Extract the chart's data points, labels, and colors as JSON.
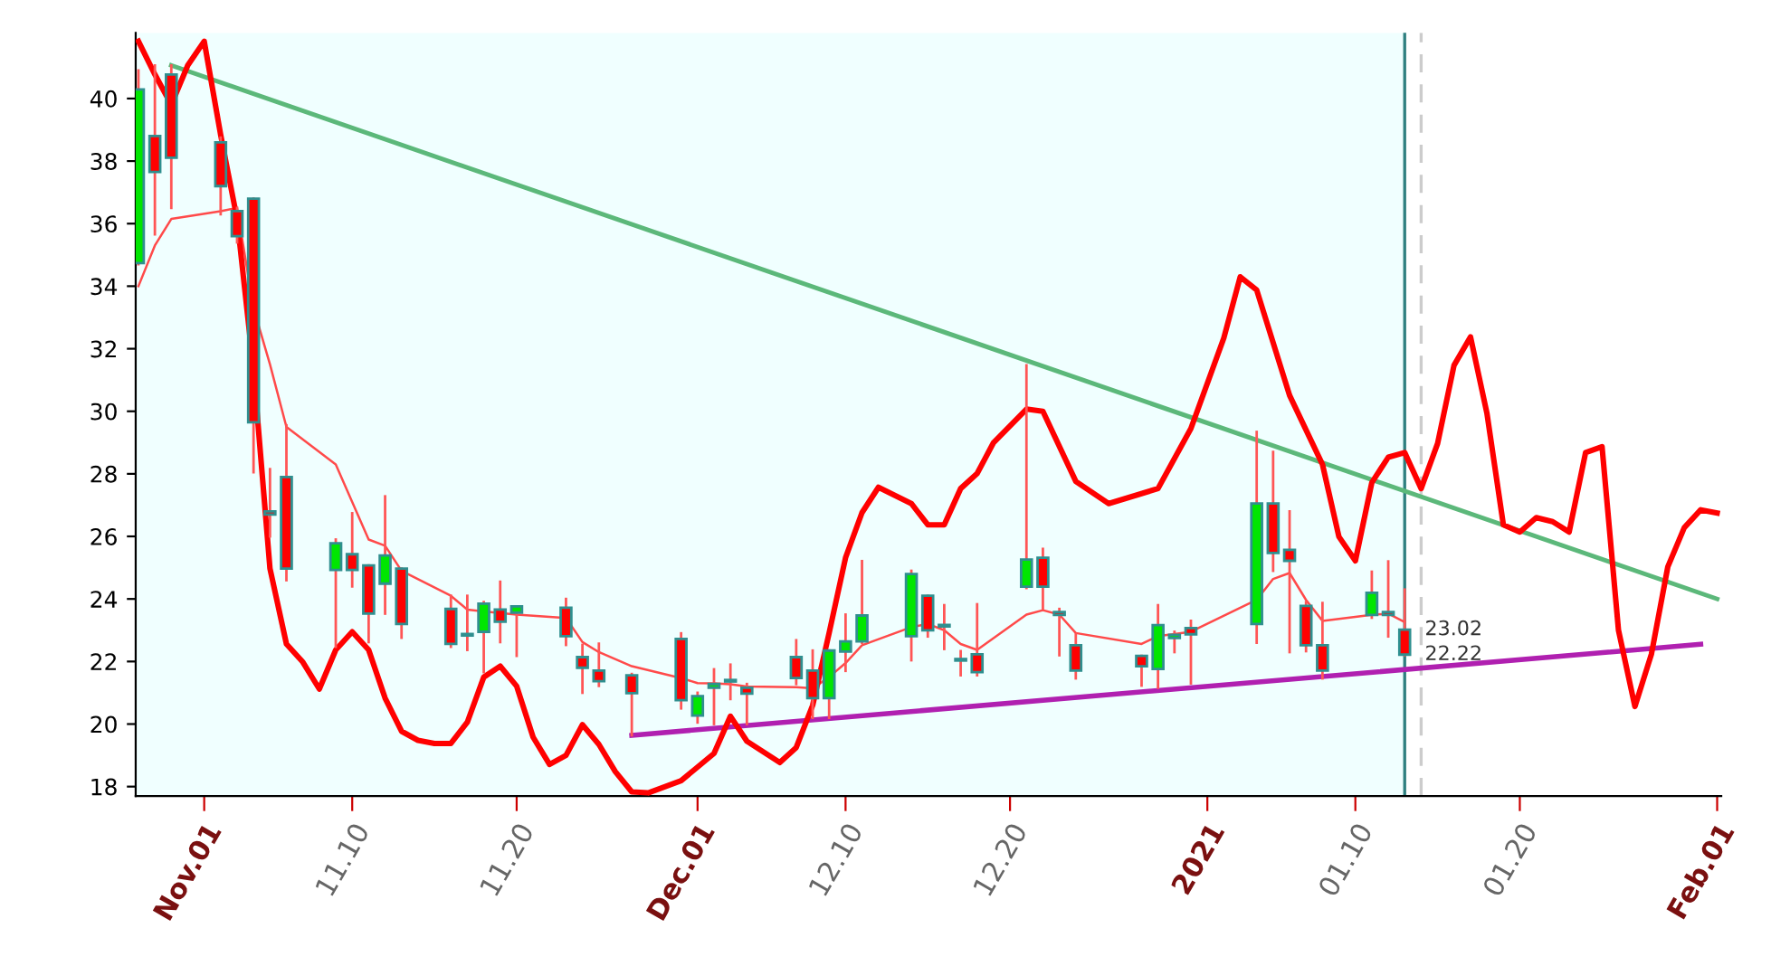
{
  "chart_data": {
    "type": "candlestick",
    "x": [
      "2020-10-28",
      "2020-10-29",
      "2020-10-30",
      "2020-11-02",
      "2020-11-03",
      "2020-11-04",
      "2020-11-05",
      "2020-11-06",
      "2020-11-09",
      "2020-11-10",
      "2020-11-11",
      "2020-11-12",
      "2020-11-13",
      "2020-11-16",
      "2020-11-17",
      "2020-11-18",
      "2020-11-19",
      "2020-11-20",
      "2020-11-23",
      "2020-11-24",
      "2020-11-25",
      "2020-11-27",
      "2020-11-30",
      "2020-12-01",
      "2020-12-02",
      "2020-12-03",
      "2020-12-04",
      "2020-12-07",
      "2020-12-08",
      "2020-12-09",
      "2020-12-10",
      "2020-12-11",
      "2020-12-14",
      "2020-12-15",
      "2020-12-16",
      "2020-12-17",
      "2020-12-18",
      "2020-12-21",
      "2020-12-22",
      "2020-12-23",
      "2020-12-24",
      "2020-12-28",
      "2020-12-29",
      "2020-12-30",
      "2020-12-31",
      "2021-01-04",
      "2021-01-05",
      "2021-01-06",
      "2021-01-07",
      "2021-01-08",
      "2021-01-11",
      "2021-01-12",
      "2021-01-13"
    ],
    "ohlc": [
      [
        34.74,
        40.9,
        34.7,
        40.29
      ],
      [
        38.8,
        41.06,
        35.66,
        37.65
      ],
      [
        40.77,
        41.06,
        36.5,
        38.11
      ],
      [
        38.6,
        38.75,
        36.3,
        37.2
      ],
      [
        36.4,
        36.5,
        35.4,
        35.6
      ],
      [
        36.8,
        36.8,
        28.05,
        29.65
      ],
      [
        26.8,
        28.15,
        26.0,
        26.7
      ],
      [
        27.9,
        29.55,
        24.6,
        24.97
      ],
      [
        24.93,
        25.9,
        22.47,
        25.78
      ],
      [
        25.43,
        26.74,
        24.4,
        24.93
      ],
      [
        25.07,
        25.07,
        22.62,
        23.53
      ],
      [
        24.49,
        27.28,
        23.53,
        25.39
      ],
      [
        24.97,
        24.97,
        22.76,
        23.2
      ],
      [
        23.68,
        24.1,
        22.47,
        22.56
      ],
      [
        22.87,
        24.1,
        22.37,
        22.83
      ],
      [
        22.95,
        23.9,
        21.66,
        23.85
      ],
      [
        23.66,
        24.55,
        22.62,
        23.27
      ],
      [
        23.56,
        23.76,
        22.18,
        23.76
      ],
      [
        23.72,
        24.0,
        22.53,
        22.81
      ],
      [
        22.14,
        22.53,
        21.0,
        21.8
      ],
      [
        21.71,
        22.57,
        21.22,
        21.37
      ],
      [
        21.56,
        21.6,
        19.64,
        20.99
      ],
      [
        22.72,
        22.9,
        20.5,
        20.76
      ],
      [
        20.27,
        21.0,
        20.05,
        20.89
      ],
      [
        21.16,
        21.75,
        20.0,
        21.28
      ],
      [
        21.38,
        21.9,
        20.8,
        21.36
      ],
      [
        21.16,
        21.28,
        20.0,
        20.97
      ],
      [
        22.14,
        22.68,
        21.28,
        21.47
      ],
      [
        21.71,
        22.35,
        20.2,
        20.83
      ],
      [
        20.83,
        22.35,
        20.2,
        22.35
      ],
      [
        22.32,
        23.5,
        21.7,
        22.64
      ],
      [
        22.64,
        25.21,
        22.6,
        23.47
      ],
      [
        22.81,
        24.9,
        22.04,
        24.8
      ],
      [
        24.1,
        24.1,
        22.8,
        23.0
      ],
      [
        23.14,
        23.8,
        22.4,
        23.12
      ],
      [
        22.05,
        22.33,
        21.56,
        22.03
      ],
      [
        22.23,
        23.83,
        21.56,
        21.66
      ],
      [
        24.39,
        31.47,
        24.35,
        25.26
      ],
      [
        25.32,
        25.6,
        23.68,
        24.39
      ],
      [
        23.58,
        23.68,
        22.2,
        23.49
      ],
      [
        22.52,
        22.86,
        21.46,
        21.71
      ],
      [
        22.18,
        22.18,
        21.23,
        21.85
      ],
      [
        21.76,
        23.8,
        21.16,
        23.16
      ],
      [
        22.75,
        22.95,
        22.3,
        22.85
      ],
      [
        23.07,
        23.3,
        21.3,
        22.87
      ],
      [
        23.2,
        29.34,
        22.6,
        27.05
      ],
      [
        27.05,
        28.7,
        24.9,
        25.47
      ],
      [
        25.57,
        26.8,
        22.3,
        25.22
      ],
      [
        23.78,
        23.9,
        22.33,
        22.52
      ],
      [
        22.52,
        23.87,
        21.46,
        21.71
      ],
      [
        23.49,
        24.87,
        23.4,
        24.2
      ],
      [
        23.58,
        25.2,
        22.8,
        23.49
      ],
      [
        23.02,
        24.3,
        22.2,
        22.22
      ]
    ],
    "colors": [
      "#00e600",
      "#ff0000",
      "#ff0000",
      "#ff0000",
      "#ff0000",
      "#ff0000",
      "#ff0000",
      "#ff0000",
      "#00e600",
      "#ff0000",
      "#ff0000",
      "#00e600",
      "#ff0000",
      "#ff0000",
      "#ff0000",
      "#00e600",
      "#ff0000",
      "#00e600",
      "#ff0000",
      "#ff0000",
      "#ff0000",
      "#ff0000",
      "#ff0000",
      "#00e600",
      "#00e600",
      "#ff0000",
      "#ff0000",
      "#ff0000",
      "#ff0000",
      "#00e600",
      "#00e600",
      "#00e600",
      "#00e600",
      "#ff0000",
      "#ff0000",
      "#ff0000",
      "#ff0000",
      "#00e600",
      "#ff0000",
      "#ff0000",
      "#ff0000",
      "#ff0000",
      "#00e600",
      "#00e600",
      "#ff0000",
      "#00e600",
      "#ff0000",
      "#ff0000",
      "#ff0000",
      "#ff0000",
      "#00e600",
      "#ff0000",
      "#ff0000"
    ],
    "series": [
      {
        "type": "line",
        "color": "#ff4a4a",
        "x": [
          "2020-10-28",
          "2020-10-29",
          "2020-10-30",
          "2020-11-02",
          "2020-11-03",
          "2020-11-04",
          "2020-11-05",
          "2020-11-06",
          "2020-11-09",
          "2020-11-10",
          "2020-11-11",
          "2020-11-12",
          "2020-11-13",
          "2020-11-16",
          "2020-11-17",
          "2020-11-18",
          "2020-11-19",
          "2020-11-20",
          "2020-11-23",
          "2020-11-24",
          "2020-11-25",
          "2020-11-27",
          "2020-11-30",
          "2020-12-01",
          "2020-12-02",
          "2020-12-03",
          "2020-12-04",
          "2020-12-07",
          "2020-12-08",
          "2020-12-09",
          "2020-12-10",
          "2020-12-11",
          "2020-12-14",
          "2020-12-15",
          "2020-12-16",
          "2020-12-17",
          "2020-12-18",
          "2020-12-21",
          "2020-12-22",
          "2020-12-23",
          "2020-12-24",
          "2020-12-28",
          "2020-12-29",
          "2020-12-30",
          "2020-12-31",
          "2021-01-04",
          "2021-01-05",
          "2021-01-06",
          "2021-01-07",
          "2021-01-08",
          "2021-01-11",
          "2021-01-12",
          "2021-01-13"
        ],
        "values": [
          34.0,
          35.3,
          36.15,
          36.4,
          36.5,
          33.3,
          31.5,
          29.5,
          28.3,
          27.1,
          25.9,
          25.7,
          24.9,
          24.1,
          23.66,
          23.6,
          23.55,
          23.5,
          23.39,
          22.62,
          22.3,
          21.85,
          21.47,
          21.31,
          21.3,
          21.27,
          21.2,
          21.18,
          21.14,
          21.5,
          21.95,
          22.52,
          23.1,
          23.2,
          23.0,
          22.56,
          22.37,
          23.5,
          23.64,
          23.5,
          22.91,
          22.56,
          22.81,
          22.88,
          22.95,
          23.97,
          24.64,
          24.83,
          23.97,
          23.3,
          23.49,
          23.53,
          23.26
        ]
      },
      {
        "type": "line",
        "color": "#ff0000",
        "x": [
          "2020-10-28",
          "2020-10-29",
          "2020-10-30",
          "2020-10-31",
          "2020-11-01",
          "2020-11-02",
          "2020-11-03",
          "2020-11-04",
          "2020-11-05",
          "2020-11-06",
          "2020-11-07",
          "2020-11-08",
          "2020-11-09",
          "2020-11-10",
          "2020-11-11",
          "2020-11-12",
          "2020-11-13",
          "2020-11-14",
          "2020-11-15",
          "2020-11-16",
          "2020-11-17",
          "2020-11-18",
          "2020-11-19",
          "2020-11-20",
          "2020-11-21",
          "2020-11-22",
          "2020-11-23",
          "2020-11-24",
          "2020-11-25",
          "2020-11-26",
          "2020-11-27",
          "2020-11-28",
          "2020-11-30",
          "2020-12-02",
          "2020-12-03",
          "2020-12-04",
          "2020-12-06",
          "2020-12-07",
          "2020-12-08",
          "2020-12-09",
          "2020-12-10",
          "2020-12-11",
          "2020-12-12",
          "2020-12-14",
          "2020-12-15",
          "2020-12-16",
          "2020-12-17",
          "2020-12-18",
          "2020-12-19",
          "2020-12-21",
          "2020-12-22",
          "2020-12-24",
          "2020-12-26",
          "2020-12-29",
          "2020-12-31",
          "2021-01-02",
          "2021-01-03",
          "2021-01-04",
          "2021-01-06",
          "2021-01-08",
          "2021-01-09",
          "2021-01-10",
          "2021-01-11",
          "2021-01-12",
          "2021-01-13",
          "2021-01-14",
          "2021-01-15",
          "2021-01-16",
          "2021-01-17",
          "2021-01-18",
          "2021-01-19",
          "2021-01-20",
          "2021-01-21",
          "2021-01-22",
          "2021-01-23",
          "2021-01-24",
          "2021-01-25",
          "2021-01-26",
          "2021-01-27",
          "2021-01-28",
          "2021-01-29",
          "2021-01-30",
          "2021-01-31",
          "2021-02-01"
        ],
        "values": [
          41.83,
          40.77,
          39.8,
          41.06,
          41.83,
          38.84,
          36.15,
          31.33,
          24.97,
          22.56,
          21.98,
          21.12,
          22.37,
          22.95,
          22.37,
          20.83,
          19.77,
          19.48,
          19.38,
          19.38,
          20.06,
          21.5,
          21.85,
          21.21,
          19.58,
          18.71,
          19.0,
          19.98,
          19.35,
          18.48,
          17.83,
          17.8,
          18.19,
          19.06,
          20.25,
          19.45,
          18.77,
          19.25,
          20.6,
          22.91,
          25.32,
          26.76,
          27.57,
          27.05,
          26.37,
          26.37,
          27.53,
          28.01,
          29.0,
          30.07,
          30.0,
          27.76,
          27.05,
          27.53,
          29.45,
          32.34,
          34.3,
          33.88,
          30.51,
          28.3,
          25.99,
          25.22,
          27.72,
          28.53,
          28.68,
          27.53,
          28.97,
          31.47,
          32.38,
          29.94,
          26.37,
          26.14,
          26.6,
          26.47,
          26.14,
          28.68,
          28.87,
          23.0,
          20.56,
          22.23,
          25.03,
          26.28,
          26.85,
          26.75
        ]
      },
      {
        "type": "line",
        "color": "#5cb87a",
        "x": [
          "2020-10-30",
          "2021-02-01"
        ],
        "values": [
          41.06,
          24.0
        ]
      },
      {
        "type": "line",
        "color": "#b020b0",
        "x": [
          "2020-11-27",
          "2021-01-31"
        ],
        "values": [
          19.64,
          22.55
        ]
      }
    ],
    "bands": [
      {
        "axis": "x",
        "from": "2020-10-27T20:00",
        "to": "2021-01-13",
        "color": "#f0ffff"
      }
    ],
    "ref_lines": [
      {
        "axis": "x",
        "value": "2021-01-13",
        "color": "#2f8080",
        "line_style": "solid"
      },
      {
        "axis": "x",
        "value": "2021-01-14",
        "color": "#cccccc",
        "line_style": "dashed"
      }
    ],
    "annotations": [
      {
        "text": "23.02",
        "x": "2021-01-13",
        "y": 23.02
      },
      {
        "text": "22.22",
        "x": "2021-01-13",
        "y": 22.22
      }
    ],
    "xlim": [
      "2020-10-27T20:00",
      "2021-02-01T06:00"
    ],
    "xticks": [
      {
        "value": "2020-11-01",
        "label": "Nov.01"
      },
      {
        "value": "2020-11-10",
        "label": "11.10"
      },
      {
        "value": "2020-11-20",
        "label": "11.20"
      },
      {
        "value": "2020-12-01",
        "label": "Dec.01"
      },
      {
        "value": "2020-12-10",
        "label": "12.10"
      },
      {
        "value": "2020-12-20",
        "label": "12.20"
      },
      {
        "value": "2021-01-01",
        "label": "2021"
      },
      {
        "value": "2021-01-10",
        "label": "01.10"
      },
      {
        "value": "2021-01-20",
        "label": "01.20"
      },
      {
        "value": "2021-02-01",
        "label": "Feb.01"
      }
    ],
    "ylim": [
      17.7,
      42.1
    ],
    "yticks": [
      18,
      20,
      22,
      24,
      26,
      28,
      30,
      32,
      34,
      36,
      38,
      40
    ],
    "grid": false,
    "legend": false
  }
}
